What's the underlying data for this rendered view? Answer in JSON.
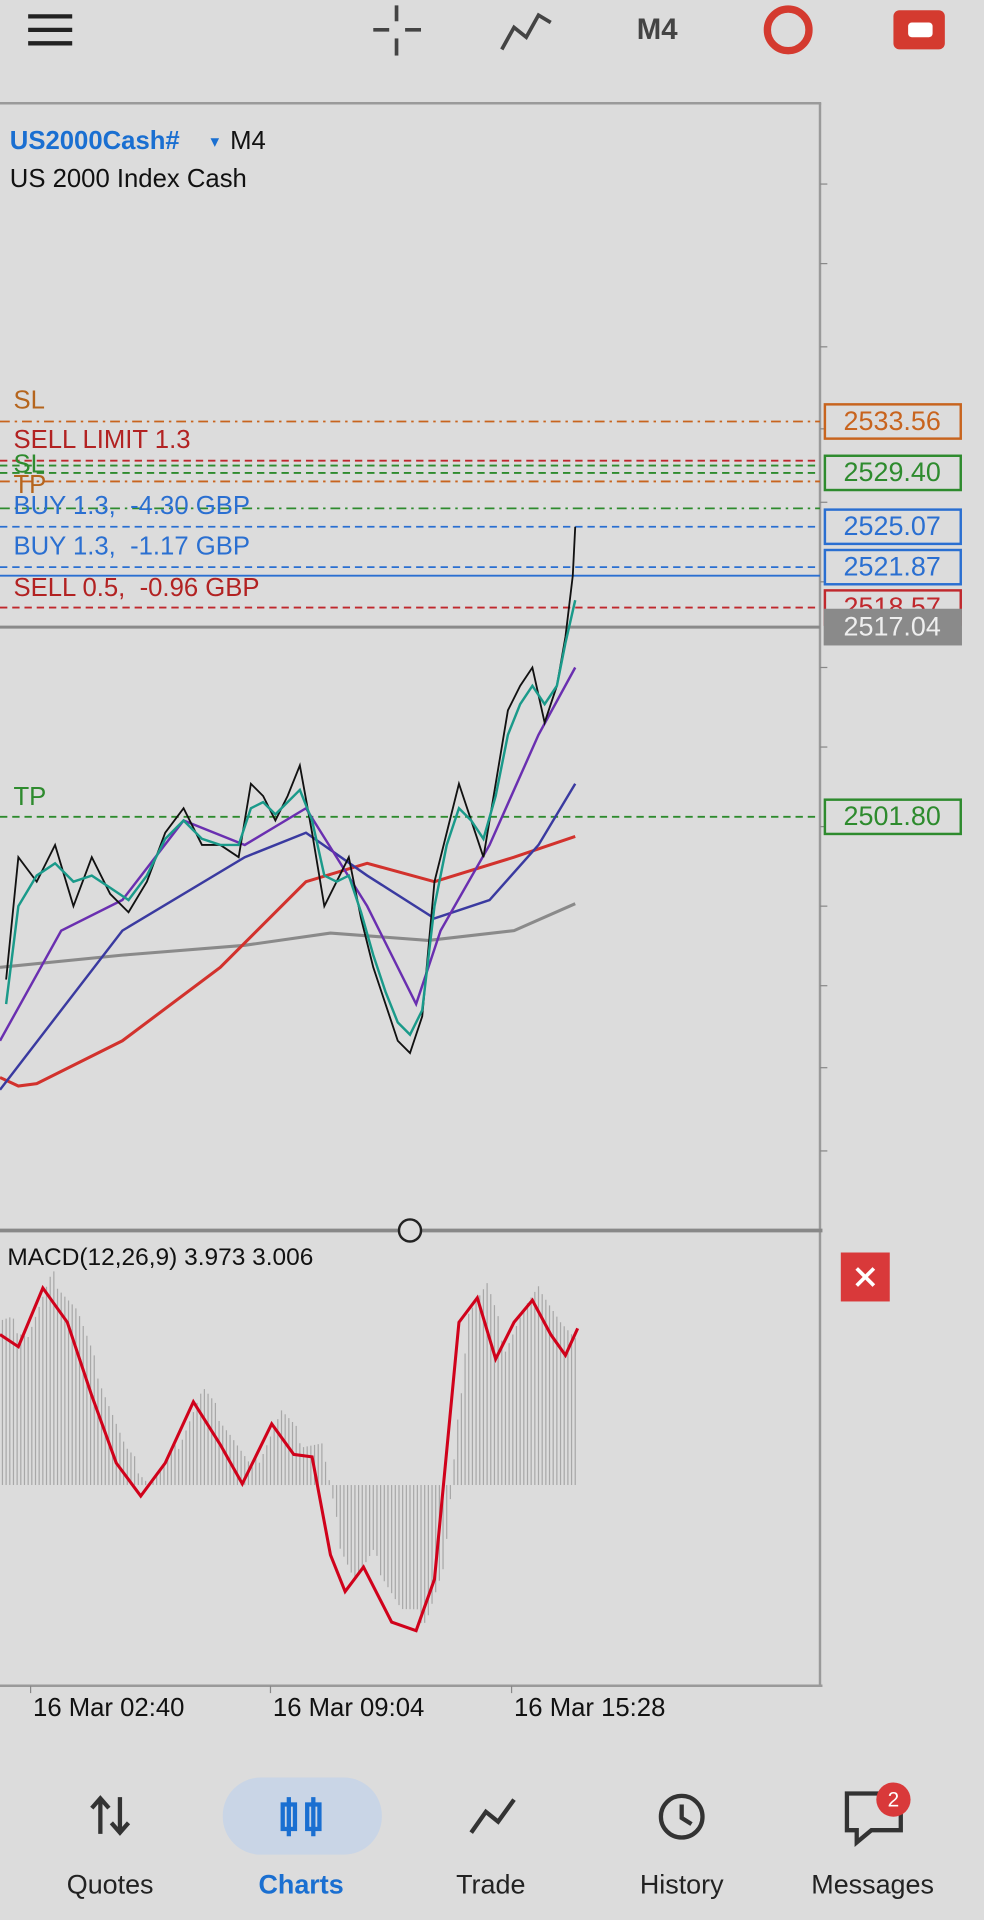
{
  "toolbar": {
    "timeframe": "M4"
  },
  "chart": {
    "symbol": "US2000Cash#",
    "timeframe": "M4",
    "description": "US 2000 Index Cash",
    "order_labels": [
      {
        "text": "SL",
        "color": "#b5651d"
      },
      {
        "text": "SELL LIMIT 1.3",
        "color": "#b22222"
      },
      {
        "text": "SL",
        "color": "#2e8b2e"
      },
      {
        "text": "TP",
        "color": "#b5651d"
      },
      {
        "text": "BUY 1.3,  -4.30 GBP",
        "color": "#2a6fd1"
      },
      {
        "text": "BUY 1.3,  -1.17 GBP",
        "color": "#2a6fd1"
      },
      {
        "text": "SELL 0.5,  -0.96 GBP",
        "color": "#b22222"
      },
      {
        "text": "TP",
        "color": "#2e8b2e"
      }
    ],
    "price_labels": [
      {
        "text": "2533.56",
        "color": "#c8641e"
      },
      {
        "text": "2529.40",
        "color": "#2e8b2e"
      },
      {
        "text": "2525.07",
        "color": "#2a6fd1"
      },
      {
        "text": "2521.87",
        "color": "#2a6fd1"
      },
      {
        "text": "2518.57",
        "color": "#c0282d"
      },
      {
        "text": "2517.04",
        "color": "#8a8a8a"
      },
      {
        "text": "2501.80",
        "color": "#2e8b2e"
      }
    ],
    "indicator": "MACD(12,26,9) 3.973 3.006",
    "time_labels": [
      "16 Mar 02:40",
      "16 Mar 09:04",
      "16 Mar 15:28"
    ]
  },
  "nav": {
    "items": [
      "Quotes",
      "Charts",
      "Trade",
      "History",
      "Messages"
    ],
    "active": "Charts",
    "messages_badge": "2"
  }
}
